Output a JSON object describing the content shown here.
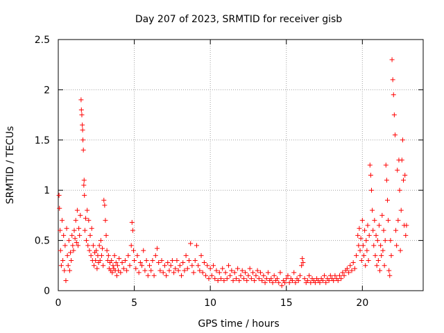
{
  "chart_data": {
    "type": "scatter",
    "title": "Day 207 of 2023, SRMTID for receiver gisb",
    "xlabel": "GPS time / hours",
    "ylabel": "SRMTID / TECUs",
    "xlim": [
      0,
      24
    ],
    "ylim": [
      0,
      2.5
    ],
    "xticks": [
      0,
      5,
      10,
      15,
      20
    ],
    "yticks": [
      0,
      0.5,
      1,
      1.5,
      2,
      2.5
    ],
    "xtick_labels": [
      "0",
      "5",
      "10",
      "15",
      "20"
    ],
    "ytick_labels": [
      "0",
      "0.5",
      "1",
      "1.5",
      "2",
      "2.5"
    ],
    "grid": true,
    "marker": "+",
    "color": "#ff0000",
    "series": [
      {
        "name": "SRMTID",
        "points": [
          [
            0.05,
            0.95
          ],
          [
            0.08,
            0.82
          ],
          [
            0.12,
            0.6
          ],
          [
            0.15,
            0.4
          ],
          [
            0.2,
            0.25
          ],
          [
            0.25,
            0.7
          ],
          [
            0.3,
            0.3
          ],
          [
            0.35,
            0.55
          ],
          [
            0.4,
            0.2
          ],
          [
            0.45,
            0.45
          ],
          [
            0.5,
            0.1
          ],
          [
            0.55,
            0.62
          ],
          [
            0.6,
            0.35
          ],
          [
            0.65,
            0.25
          ],
          [
            0.7,
            0.5
          ],
          [
            0.75,
            0.2
          ],
          [
            0.8,
            0.38
          ],
          [
            0.85,
            0.3
          ],
          [
            0.9,
            0.55
          ],
          [
            0.95,
            0.45
          ],
          [
            1.0,
            0.4
          ],
          [
            1.05,
            0.6
          ],
          [
            1.1,
            0.52
          ],
          [
            1.15,
            0.7
          ],
          [
            1.2,
            0.48
          ],
          [
            1.25,
            0.8
          ],
          [
            1.3,
            0.45
          ],
          [
            1.35,
            0.62
          ],
          [
            1.4,
            0.55
          ],
          [
            1.45,
            0.75
          ],
          [
            1.5,
            1.9
          ],
          [
            1.52,
            1.8
          ],
          [
            1.55,
            1.75
          ],
          [
            1.58,
            1.65
          ],
          [
            1.6,
            1.6
          ],
          [
            1.62,
            1.5
          ],
          [
            1.65,
            1.4
          ],
          [
            1.68,
            1.05
          ],
          [
            1.7,
            1.1
          ],
          [
            1.72,
            0.95
          ],
          [
            1.75,
            0.6
          ],
          [
            1.8,
            0.72
          ],
          [
            1.85,
            0.5
          ],
          [
            1.9,
            0.8
          ],
          [
            1.95,
            0.45
          ],
          [
            2.0,
            0.7
          ],
          [
            2.05,
            0.4
          ],
          [
            2.1,
            0.55
          ],
          [
            2.15,
            0.35
          ],
          [
            2.2,
            0.62
          ],
          [
            2.25,
            0.3
          ],
          [
            2.3,
            0.45
          ],
          [
            2.35,
            0.25
          ],
          [
            2.4,
            0.38
          ],
          [
            2.45,
            0.3
          ],
          [
            2.5,
            0.4
          ],
          [
            2.55,
            0.22
          ],
          [
            2.6,
            0.35
          ],
          [
            2.65,
            0.28
          ],
          [
            2.7,
            0.45
          ],
          [
            2.75,
            0.3
          ],
          [
            2.8,
            0.5
          ],
          [
            2.85,
            0.35
          ],
          [
            2.9,
            0.42
          ],
          [
            2.95,
            0.25
          ],
          [
            3.0,
            0.9
          ],
          [
            3.05,
            0.85
          ],
          [
            3.1,
            0.7
          ],
          [
            3.15,
            0.55
          ],
          [
            3.2,
            0.4
          ],
          [
            3.25,
            0.3
          ],
          [
            3.3,
            0.35
          ],
          [
            3.35,
            0.22
          ],
          [
            3.4,
            0.28
          ],
          [
            3.45,
            0.2
          ],
          [
            3.5,
            0.3
          ],
          [
            3.55,
            0.18
          ],
          [
            3.6,
            0.25
          ],
          [
            3.65,
            0.22
          ],
          [
            3.7,
            0.35
          ],
          [
            3.75,
            0.2
          ],
          [
            3.8,
            0.28
          ],
          [
            3.85,
            0.15
          ],
          [
            3.9,
            0.25
          ],
          [
            3.95,
            0.2
          ],
          [
            4.0,
            0.32
          ],
          [
            4.1,
            0.18
          ],
          [
            4.2,
            0.28
          ],
          [
            4.3,
            0.22
          ],
          [
            4.4,
            0.3
          ],
          [
            4.5,
            0.2
          ],
          [
            4.6,
            0.35
          ],
          [
            4.7,
            0.25
          ],
          [
            4.8,
            0.45
          ],
          [
            4.85,
            0.68
          ],
          [
            4.9,
            0.6
          ],
          [
            4.95,
            0.4
          ],
          [
            5.0,
            0.3
          ],
          [
            5.1,
            0.22
          ],
          [
            5.2,
            0.35
          ],
          [
            5.3,
            0.18
          ],
          [
            5.4,
            0.28
          ],
          [
            5.5,
            0.25
          ],
          [
            5.6,
            0.4
          ],
          [
            5.7,
            0.2
          ],
          [
            5.8,
            0.3
          ],
          [
            5.9,
            0.15
          ],
          [
            6.0,
            0.25
          ],
          [
            6.1,
            0.2
          ],
          [
            6.2,
            0.3
          ],
          [
            6.3,
            0.15
          ],
          [
            6.4,
            0.35
          ],
          [
            6.5,
            0.42
          ],
          [
            6.6,
            0.28
          ],
          [
            6.7,
            0.2
          ],
          [
            6.8,
            0.3
          ],
          [
            6.9,
            0.18
          ],
          [
            7.0,
            0.25
          ],
          [
            7.1,
            0.15
          ],
          [
            7.2,
            0.28
          ],
          [
            7.3,
            0.2
          ],
          [
            7.4,
            0.25
          ],
          [
            7.5,
            0.3
          ],
          [
            7.6,
            0.18
          ],
          [
            7.7,
            0.22
          ],
          [
            7.8,
            0.3
          ],
          [
            7.9,
            0.2
          ],
          [
            8.0,
            0.25
          ],
          [
            8.1,
            0.15
          ],
          [
            8.2,
            0.28
          ],
          [
            8.3,
            0.2
          ],
          [
            8.4,
            0.35
          ],
          [
            8.5,
            0.22
          ],
          [
            8.6,
            0.3
          ],
          [
            8.7,
            0.47
          ],
          [
            8.8,
            0.25
          ],
          [
            8.9,
            0.18
          ],
          [
            9.0,
            0.3
          ],
          [
            9.1,
            0.45
          ],
          [
            9.2,
            0.25
          ],
          [
            9.3,
            0.2
          ],
          [
            9.4,
            0.35
          ],
          [
            9.5,
            0.18
          ],
          [
            9.6,
            0.28
          ],
          [
            9.7,
            0.15
          ],
          [
            9.8,
            0.25
          ],
          [
            9.9,
            0.12
          ],
          [
            10.0,
            0.22
          ],
          [
            10.1,
            0.15
          ],
          [
            10.2,
            0.25
          ],
          [
            10.3,
            0.12
          ],
          [
            10.4,
            0.2
          ],
          [
            10.5,
            0.1
          ],
          [
            10.6,
            0.18
          ],
          [
            10.7,
            0.12
          ],
          [
            10.8,
            0.22
          ],
          [
            10.9,
            0.1
          ],
          [
            11.0,
            0.18
          ],
          [
            11.1,
            0.12
          ],
          [
            11.2,
            0.25
          ],
          [
            11.3,
            0.15
          ],
          [
            11.4,
            0.2
          ],
          [
            11.5,
            0.1
          ],
          [
            11.6,
            0.18
          ],
          [
            11.7,
            0.12
          ],
          [
            11.8,
            0.22
          ],
          [
            11.9,
            0.1
          ],
          [
            12.0,
            0.15
          ],
          [
            12.1,
            0.2
          ],
          [
            12.2,
            0.12
          ],
          [
            12.3,
            0.18
          ],
          [
            12.4,
            0.1
          ],
          [
            12.5,
            0.15
          ],
          [
            12.6,
            0.22
          ],
          [
            12.7,
            0.12
          ],
          [
            12.8,
            0.18
          ],
          [
            12.9,
            0.1
          ],
          [
            13.0,
            0.15
          ],
          [
            13.1,
            0.2
          ],
          [
            13.2,
            0.12
          ],
          [
            13.3,
            0.18
          ],
          [
            13.4,
            0.1
          ],
          [
            13.5,
            0.15
          ],
          [
            13.6,
            0.08
          ],
          [
            13.7,
            0.12
          ],
          [
            13.8,
            0.18
          ],
          [
            13.9,
            0.1
          ],
          [
            14.0,
            0.12
          ],
          [
            14.1,
            0.08
          ],
          [
            14.2,
            0.15
          ],
          [
            14.3,
            0.1
          ],
          [
            14.4,
            0.12
          ],
          [
            14.5,
            0.08
          ],
          [
            14.6,
            0.18
          ],
          [
            14.7,
            0.05
          ],
          [
            14.8,
            0.1
          ],
          [
            14.9,
            0.08
          ],
          [
            15.0,
            0.12
          ],
          [
            15.1,
            0.15
          ],
          [
            15.2,
            0.08
          ],
          [
            15.3,
            0.12
          ],
          [
            15.4,
            0.1
          ],
          [
            15.5,
            0.18
          ],
          [
            15.6,
            0.08
          ],
          [
            15.7,
            0.12
          ],
          [
            15.8,
            0.1
          ],
          [
            15.9,
            0.15
          ],
          [
            16.0,
            0.25
          ],
          [
            16.05,
            0.32
          ],
          [
            16.1,
            0.28
          ],
          [
            16.2,
            0.12
          ],
          [
            16.3,
            0.08
          ],
          [
            16.4,
            0.1
          ],
          [
            16.5,
            0.15
          ],
          [
            16.6,
            0.08
          ],
          [
            16.7,
            0.12
          ],
          [
            16.8,
            0.1
          ],
          [
            16.9,
            0.08
          ],
          [
            17.0,
            0.12
          ],
          [
            17.1,
            0.1
          ],
          [
            17.2,
            0.08
          ],
          [
            17.3,
            0.12
          ],
          [
            17.4,
            0.1
          ],
          [
            17.5,
            0.15
          ],
          [
            17.6,
            0.08
          ],
          [
            17.7,
            0.12
          ],
          [
            17.8,
            0.1
          ],
          [
            17.9,
            0.15
          ],
          [
            18.0,
            0.12
          ],
          [
            18.1,
            0.1
          ],
          [
            18.2,
            0.15
          ],
          [
            18.3,
            0.12
          ],
          [
            18.4,
            0.1
          ],
          [
            18.5,
            0.15
          ],
          [
            18.6,
            0.12
          ],
          [
            18.7,
            0.18
          ],
          [
            18.8,
            0.15
          ],
          [
            18.9,
            0.2
          ],
          [
            19.0,
            0.22
          ],
          [
            19.1,
            0.18
          ],
          [
            19.2,
            0.25
          ],
          [
            19.3,
            0.2
          ],
          [
            19.4,
            0.28
          ],
          [
            19.5,
            0.22
          ],
          [
            19.6,
            0.35
          ],
          [
            19.7,
            0.55
          ],
          [
            19.75,
            0.45
          ],
          [
            19.8,
            0.62
          ],
          [
            19.85,
            0.4
          ],
          [
            19.9,
            0.52
          ],
          [
            19.95,
            0.3
          ],
          [
            20.0,
            0.7
          ],
          [
            20.05,
            0.45
          ],
          [
            20.1,
            0.35
          ],
          [
            20.15,
            0.6
          ],
          [
            20.2,
            0.25
          ],
          [
            20.25,
            0.5
          ],
          [
            20.3,
            0.4
          ],
          [
            20.35,
            0.65
          ],
          [
            20.4,
            0.3
          ],
          [
            20.45,
            0.55
          ],
          [
            20.5,
            1.25
          ],
          [
            20.55,
            1.15
          ],
          [
            20.6,
            1.0
          ],
          [
            20.65,
            0.8
          ],
          [
            20.7,
            0.6
          ],
          [
            20.75,
            0.45
          ],
          [
            20.8,
            0.7
          ],
          [
            20.85,
            0.35
          ],
          [
            20.9,
            0.55
          ],
          [
            20.95,
            0.25
          ],
          [
            21.0,
            0.5
          ],
          [
            21.05,
            0.3
          ],
          [
            21.1,
            0.65
          ],
          [
            21.15,
            0.2
          ],
          [
            21.2,
            0.45
          ],
          [
            21.25,
            0.35
          ],
          [
            21.3,
            0.75
          ],
          [
            21.35,
            0.4
          ],
          [
            21.4,
            0.6
          ],
          [
            21.45,
            0.25
          ],
          [
            21.5,
            0.5
          ],
          [
            21.55,
            1.25
          ],
          [
            21.6,
            1.1
          ],
          [
            21.65,
            0.9
          ],
          [
            21.7,
            0.7
          ],
          [
            21.75,
            0.2
          ],
          [
            21.8,
            0.15
          ],
          [
            21.85,
            0.5
          ],
          [
            21.9,
            0.35
          ],
          [
            21.95,
            2.3
          ],
          [
            22.0,
            2.1
          ],
          [
            22.05,
            1.95
          ],
          [
            22.1,
            1.75
          ],
          [
            22.15,
            1.55
          ],
          [
            22.2,
            0.6
          ],
          [
            22.25,
            0.45
          ],
          [
            22.3,
            1.2
          ],
          [
            22.35,
            0.7
          ],
          [
            22.4,
            1.3
          ],
          [
            22.45,
            1.0
          ],
          [
            22.5,
            0.4
          ],
          [
            22.55,
            0.8
          ],
          [
            22.6,
            1.3
          ],
          [
            22.65,
            1.5
          ],
          [
            22.7,
            1.1
          ],
          [
            22.75,
            0.65
          ],
          [
            22.8,
            1.15
          ],
          [
            22.85,
            0.55
          ],
          [
            22.9,
            0.65
          ]
        ]
      }
    ]
  }
}
